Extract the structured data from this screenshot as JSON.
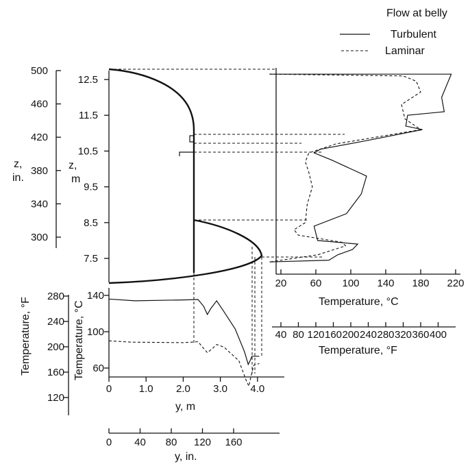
{
  "legend": {
    "title": "Flow at belly",
    "turbulent": "Turbulent",
    "laminar": "Laminar"
  },
  "axes": {
    "z_in": {
      "label_top": "z,",
      "label_bot": "in.",
      "ticks": [
        "500",
        "460",
        "420",
        "380",
        "340",
        "300"
      ]
    },
    "z_m": {
      "label_top": "z,",
      "label_bot": "m",
      "ticks": [
        "12.5",
        "11.5",
        "10.5",
        "9.5",
        "8.5",
        "7.5"
      ]
    },
    "temp_C_right": {
      "label": "Temperature, °C",
      "ticks": [
        "20",
        "60",
        "100",
        "140",
        "180",
        "220"
      ]
    },
    "temp_F_right": {
      "label": "Temperature, °F",
      "ticks": [
        "40",
        "80",
        "120",
        "160",
        "200",
        "240",
        "280",
        "320",
        "360",
        "400"
      ]
    },
    "temp_F_left": {
      "label": "Temperature, °F",
      "ticks": [
        "280",
        "240",
        "200",
        "160",
        "120"
      ]
    },
    "temp_C_left": {
      "label": "Temperature, °C",
      "ticks": [
        "140",
        "100",
        "60"
      ]
    },
    "y_m": {
      "label": "y, m",
      "ticks": [
        "0",
        "1.0",
        "2.0",
        "3.0",
        "4.0"
      ]
    },
    "y_in": {
      "label": "y, in.",
      "ticks": [
        "0",
        "40",
        "80",
        "120",
        "160"
      ]
    }
  },
  "chart_data": [
    {
      "type": "line",
      "panel": "vertical temperature profile (right)",
      "xlabel": "Temperature, °C",
      "ylabel": "z, m",
      "xlim": [
        7,
        222
      ],
      "ylim": [
        6.87,
        12.75
      ],
      "series": [
        {
          "name": "Turbulent",
          "style": "solid",
          "points": [
            [
              7,
              12.65
            ],
            [
              215,
              12.65
            ],
            [
              204,
              12.0
            ],
            [
              207,
              11.6
            ],
            [
              165,
              11.5
            ],
            [
              163,
              11.2
            ],
            [
              182,
              11.1
            ],
            [
              120,
              10.8
            ],
            [
              65,
              10.55
            ],
            [
              58,
              10.45
            ],
            [
              78,
              10.25
            ],
            [
              118,
              9.8
            ],
            [
              112,
              9.3
            ],
            [
              95,
              8.75
            ],
            [
              58,
              8.4
            ],
            [
              62,
              8.0
            ],
            [
              108,
              7.9
            ],
            [
              102,
              7.75
            ],
            [
              85,
              7.6
            ],
            [
              75,
              7.45
            ],
            [
              7,
              7.4
            ]
          ]
        },
        {
          "name": "Laminar",
          "style": "dashed",
          "points": [
            [
              7,
              12.65
            ],
            [
              160,
              12.6
            ],
            [
              175,
              12.45
            ],
            [
              180,
              12.15
            ],
            [
              158,
              11.8
            ],
            [
              162,
              11.4
            ],
            [
              180,
              11.1
            ],
            [
              83,
              10.7
            ],
            [
              52,
              10.45
            ],
            [
              48,
              10.2
            ],
            [
              52,
              9.9
            ],
            [
              56,
              9.5
            ],
            [
              50,
              9.0
            ],
            [
              48,
              8.5
            ],
            [
              35,
              8.3
            ],
            [
              40,
              8.15
            ],
            [
              90,
              7.95
            ],
            [
              94,
              7.85
            ],
            [
              62,
              7.6
            ],
            [
              7,
              7.4
            ]
          ]
        }
      ]
    },
    {
      "type": "line",
      "panel": "horizontal temperature profile (bottom)",
      "xlabel": "y, m",
      "ylabel": "Temperature, °C",
      "xlim": [
        0,
        4.35
      ],
      "ylim": [
        38,
        140
      ],
      "series": [
        {
          "name": "Turbulent",
          "style": "solid",
          "points": [
            [
              0,
              136
            ],
            [
              0.7,
              134
            ],
            [
              2.0,
              135
            ],
            [
              2.4,
              135.5
            ],
            [
              2.55,
              128
            ],
            [
              2.65,
              119
            ],
            [
              2.75,
              126
            ],
            [
              2.9,
              134
            ],
            [
              3.1,
              122
            ],
            [
              3.4,
              103
            ],
            [
              3.65,
              78
            ],
            [
              3.75,
              64
            ],
            [
              3.8,
              68
            ],
            [
              3.85,
              73
            ],
            [
              4.05,
              73
            ]
          ]
        },
        {
          "name": "Laminar",
          "style": "dashed",
          "points": [
            [
              0,
              90
            ],
            [
              0.6,
              88.5
            ],
            [
              2.0,
              88
            ],
            [
              2.4,
              89
            ],
            [
              2.5,
              84
            ],
            [
              2.65,
              77
            ],
            [
              2.8,
              82
            ],
            [
              2.9,
              86
            ],
            [
              3.1,
              83
            ],
            [
              3.5,
              68
            ],
            [
              3.7,
              46
            ],
            [
              3.77,
              40
            ],
            [
              3.82,
              50
            ],
            [
              3.9,
              63
            ],
            [
              4.05,
              65
            ]
          ]
        }
      ]
    }
  ]
}
